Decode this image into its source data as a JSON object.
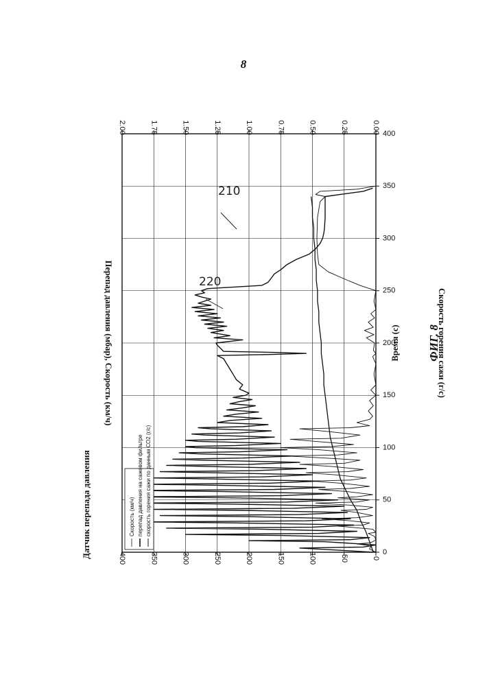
{
  "page_number": "8",
  "chart_data": {
    "type": "line",
    "title": "Датчик перепада давления",
    "figure_label": "ФИГ. 8",
    "xlabel": "Время (с)",
    "ylabel": "Перепад давления (мбар), Скорость (км/ч)",
    "y2label": "Скорость горения сажи (г/с)",
    "xlim": [
      0,
      400
    ],
    "ylim": [
      0,
      400
    ],
    "y2lim": [
      0,
      2
    ],
    "grid": true,
    "legend_position": "top-left",
    "x_ticks": [
      "0",
      "50",
      "100",
      "150",
      "200",
      "250",
      "300",
      "350",
      "400"
    ],
    "y_ticks": [
      "0",
      "50",
      "100",
      "150",
      "200",
      "250",
      "300",
      "350",
      "400"
    ],
    "y2_ticks": [
      "0.00",
      "0.25",
      "0.50",
      "0.75",
      "1.00",
      "1.25",
      "1.50",
      "1.75",
      "2.00"
    ],
    "legend": [
      "Скорость (км/ч)",
      "перепад давления на сажевом фильтре",
      "скорость горения сажи по данным СО2 (г/с)"
    ],
    "annotations": [
      "210",
      "220"
    ],
    "series": [
      {
        "name": "Скорость (км/ч)",
        "axis": "left",
        "points": [
          [
            0,
            0
          ],
          [
            3,
            10
          ],
          [
            6,
            8
          ],
          [
            8,
            30
          ],
          [
            9,
            10
          ],
          [
            10,
            5
          ],
          [
            12,
            0
          ],
          [
            15,
            2
          ],
          [
            18,
            12
          ],
          [
            19,
            0
          ],
          [
            22,
            5
          ],
          [
            25,
            60
          ],
          [
            26,
            20
          ],
          [
            28,
            10
          ],
          [
            30,
            40
          ],
          [
            32,
            85
          ],
          [
            33,
            30
          ],
          [
            35,
            5
          ],
          [
            38,
            30
          ],
          [
            40,
            55
          ],
          [
            41,
            15
          ],
          [
            43,
            5
          ],
          [
            45,
            40
          ],
          [
            47,
            95
          ],
          [
            48,
            30
          ],
          [
            50,
            10
          ],
          [
            52,
            60
          ],
          [
            53,
            30
          ],
          [
            55,
            5
          ],
          [
            58,
            45
          ],
          [
            60,
            90
          ],
          [
            61,
            40
          ],
          [
            63,
            10
          ],
          [
            66,
            55
          ],
          [
            68,
            100
          ],
          [
            69,
            40
          ],
          [
            71,
            15
          ],
          [
            74,
            65
          ],
          [
            76,
            110
          ],
          [
            77,
            45
          ],
          [
            79,
            20
          ],
          [
            82,
            70
          ],
          [
            84,
            120
          ],
          [
            85,
            50
          ],
          [
            88,
            25
          ],
          [
            90,
            80
          ],
          [
            92,
            140
          ],
          [
            93,
            60
          ],
          [
            95,
            30
          ],
          [
            98,
            90
          ],
          [
            100,
            150
          ],
          [
            101,
            70
          ],
          [
            103,
            35
          ],
          [
            106,
            95
          ],
          [
            108,
            135
          ],
          [
            109,
            55
          ],
          [
            112,
            25
          ],
          [
            115,
            70
          ],
          [
            118,
            120
          ],
          [
            119,
            40
          ],
          [
            121,
            10
          ],
          [
            124,
            30
          ],
          [
            127,
            10
          ],
          [
            130,
            5
          ],
          [
            135,
            12
          ],
          [
            140,
            4
          ],
          [
            145,
            10
          ],
          [
            150,
            0
          ],
          [
            155,
            8
          ],
          [
            160,
            0
          ],
          [
            170,
            3
          ],
          [
            180,
            0
          ],
          [
            187,
            5
          ],
          [
            190,
            0
          ],
          [
            193,
            4
          ],
          [
            200,
            2
          ],
          [
            205,
            15
          ],
          [
            208,
            3
          ],
          [
            212,
            18
          ],
          [
            215,
            4
          ],
          [
            220,
            12
          ],
          [
            224,
            2
          ],
          [
            228,
            8
          ],
          [
            232,
            0
          ],
          [
            240,
            3
          ],
          [
            250,
            0
          ],
          [
            252,
            10
          ],
          [
            255,
            25
          ],
          [
            260,
            45
          ],
          [
            268,
            75
          ],
          [
            275,
            90
          ],
          [
            285,
            92
          ],
          [
            300,
            93
          ],
          [
            320,
            92
          ],
          [
            335,
            88
          ],
          [
            340,
            80
          ],
          [
            342,
            95
          ],
          [
            345,
            88
          ],
          [
            347,
            30
          ],
          [
            350,
            0
          ]
        ]
      },
      {
        "name": "перепад давления на сажевом фильтре",
        "axis": "left",
        "points": [
          [
            0,
            5
          ],
          [
            2,
            60
          ],
          [
            4,
            120
          ],
          [
            5,
            20
          ],
          [
            7,
            0
          ],
          [
            10,
            80
          ],
          [
            11,
            200
          ],
          [
            12,
            40
          ],
          [
            14,
            10
          ],
          [
            16,
            150
          ],
          [
            17,
            300
          ],
          [
            18,
            90
          ],
          [
            20,
            30
          ],
          [
            22,
            180
          ],
          [
            23,
            330
          ],
          [
            24,
            100
          ],
          [
            26,
            35
          ],
          [
            28,
            220
          ],
          [
            29,
            360
          ],
          [
            30,
            110
          ],
          [
            32,
            40
          ],
          [
            34,
            200
          ],
          [
            35,
            340
          ],
          [
            36,
            120
          ],
          [
            38,
            45
          ],
          [
            40,
            210
          ],
          [
            41,
            350
          ],
          [
            42,
            130
          ],
          [
            44,
            50
          ],
          [
            46,
            220
          ],
          [
            47,
            370
          ],
          [
            48,
            140
          ],
          [
            50,
            60
          ],
          [
            52,
            230
          ],
          [
            53,
            380
          ],
          [
            54,
            150
          ],
          [
            56,
            70
          ],
          [
            58,
            240
          ],
          [
            59,
            370
          ],
          [
            60,
            160
          ],
          [
            62,
            80
          ],
          [
            64,
            250
          ],
          [
            65,
            360
          ],
          [
            66,
            170
          ],
          [
            68,
            90
          ],
          [
            70,
            260
          ],
          [
            71,
            350
          ],
          [
            72,
            180
          ],
          [
            74,
            100
          ],
          [
            76,
            260
          ],
          [
            77,
            340
          ],
          [
            78,
            190
          ],
          [
            80,
            110
          ],
          [
            82,
            270
          ],
          [
            83,
            330
          ],
          [
            84,
            200
          ],
          [
            86,
            120
          ],
          [
            88,
            275
          ],
          [
            89,
            320
          ],
          [
            90,
            210
          ],
          [
            92,
            130
          ],
          [
            94,
            280
          ],
          [
            95,
            310
          ],
          [
            96,
            215
          ],
          [
            98,
            140
          ],
          [
            100,
            285
          ],
          [
            101,
            300
          ],
          [
            102,
            220
          ],
          [
            104,
            150
          ],
          [
            106,
            280
          ],
          [
            107,
            300
          ],
          [
            108,
            220
          ],
          [
            110,
            160
          ],
          [
            112,
            270
          ],
          [
            113,
            290
          ],
          [
            114,
            215
          ],
          [
            116,
            165
          ],
          [
            118,
            260
          ],
          [
            119,
            280
          ],
          [
            120,
            210
          ],
          [
            122,
            170
          ],
          [
            124,
            250
          ],
          [
            126,
            230
          ],
          [
            128,
            180
          ],
          [
            130,
            240
          ],
          [
            132,
            220
          ],
          [
            134,
            185
          ],
          [
            136,
            235
          ],
          [
            138,
            210
          ],
          [
            140,
            190
          ],
          [
            142,
            230
          ],
          [
            144,
            215
          ],
          [
            146,
            195
          ],
          [
            148,
            225
          ],
          [
            150,
            205
          ],
          [
            152,
            200
          ],
          [
            156,
            215
          ],
          [
            160,
            210
          ],
          [
            165,
            220
          ],
          [
            170,
            225
          ],
          [
            175,
            230
          ],
          [
            180,
            235
          ],
          [
            185,
            240
          ],
          [
            188,
            250
          ],
          [
            189,
            170
          ],
          [
            190,
            110
          ],
          [
            191,
            160
          ],
          [
            192,
            240
          ],
          [
            195,
            245
          ],
          [
            198,
            250
          ],
          [
            200,
            252
          ],
          [
            203,
            210
          ],
          [
            205,
            255
          ],
          [
            207,
            230
          ],
          [
            210,
            260
          ],
          [
            212,
            240
          ],
          [
            214,
            265
          ],
          [
            216,
            235
          ],
          [
            218,
            270
          ],
          [
            220,
            240
          ],
          [
            222,
            275
          ],
          [
            224,
            245
          ],
          [
            226,
            280
          ],
          [
            228,
            250
          ],
          [
            230,
            285
          ],
          [
            232,
            255
          ],
          [
            234,
            290
          ],
          [
            236,
            260
          ],
          [
            238,
            280
          ],
          [
            240,
            270
          ],
          [
            242,
            260
          ],
          [
            244,
            275
          ],
          [
            246,
            285
          ],
          [
            248,
            270
          ],
          [
            250,
            275
          ],
          [
            252,
            265
          ],
          [
            255,
            180
          ],
          [
            258,
            170
          ],
          [
            262,
            165
          ],
          [
            266,
            160
          ],
          [
            270,
            150
          ],
          [
            275,
            140
          ],
          [
            280,
            125
          ],
          [
            285,
            105
          ],
          [
            290,
            95
          ],
          [
            295,
            88
          ],
          [
            300,
            84
          ],
          [
            305,
            82
          ],
          [
            310,
            81
          ],
          [
            320,
            80
          ],
          [
            330,
            80
          ],
          [
            340,
            80
          ],
          [
            345,
            20
          ],
          [
            348,
            5
          ]
        ]
      },
      {
        "name": "скорость горения сажи по данным СО2 (г/с)",
        "axis": "right",
        "points": [
          [
            0,
            0.02
          ],
          [
            10,
            0.05
          ],
          [
            20,
            0.08
          ],
          [
            30,
            0.12
          ],
          [
            40,
            0.15
          ],
          [
            50,
            0.2
          ],
          [
            60,
            0.24
          ],
          [
            70,
            0.28
          ],
          [
            80,
            0.3
          ],
          [
            90,
            0.32
          ],
          [
            100,
            0.34
          ],
          [
            110,
            0.36
          ],
          [
            120,
            0.37
          ],
          [
            130,
            0.38
          ],
          [
            140,
            0.39
          ],
          [
            150,
            0.4
          ],
          [
            160,
            0.41
          ],
          [
            170,
            0.41
          ],
          [
            180,
            0.42
          ],
          [
            190,
            0.43
          ],
          [
            200,
            0.43
          ],
          [
            210,
            0.44
          ],
          [
            220,
            0.45
          ],
          [
            230,
            0.45
          ],
          [
            240,
            0.46
          ],
          [
            250,
            0.46
          ],
          [
            260,
            0.47
          ],
          [
            270,
            0.47
          ],
          [
            280,
            0.48
          ],
          [
            290,
            0.48
          ],
          [
            300,
            0.49
          ],
          [
            310,
            0.49
          ],
          [
            320,
            0.5
          ],
          [
            330,
            0.5
          ],
          [
            340,
            0.51
          ]
        ]
      }
    ]
  }
}
